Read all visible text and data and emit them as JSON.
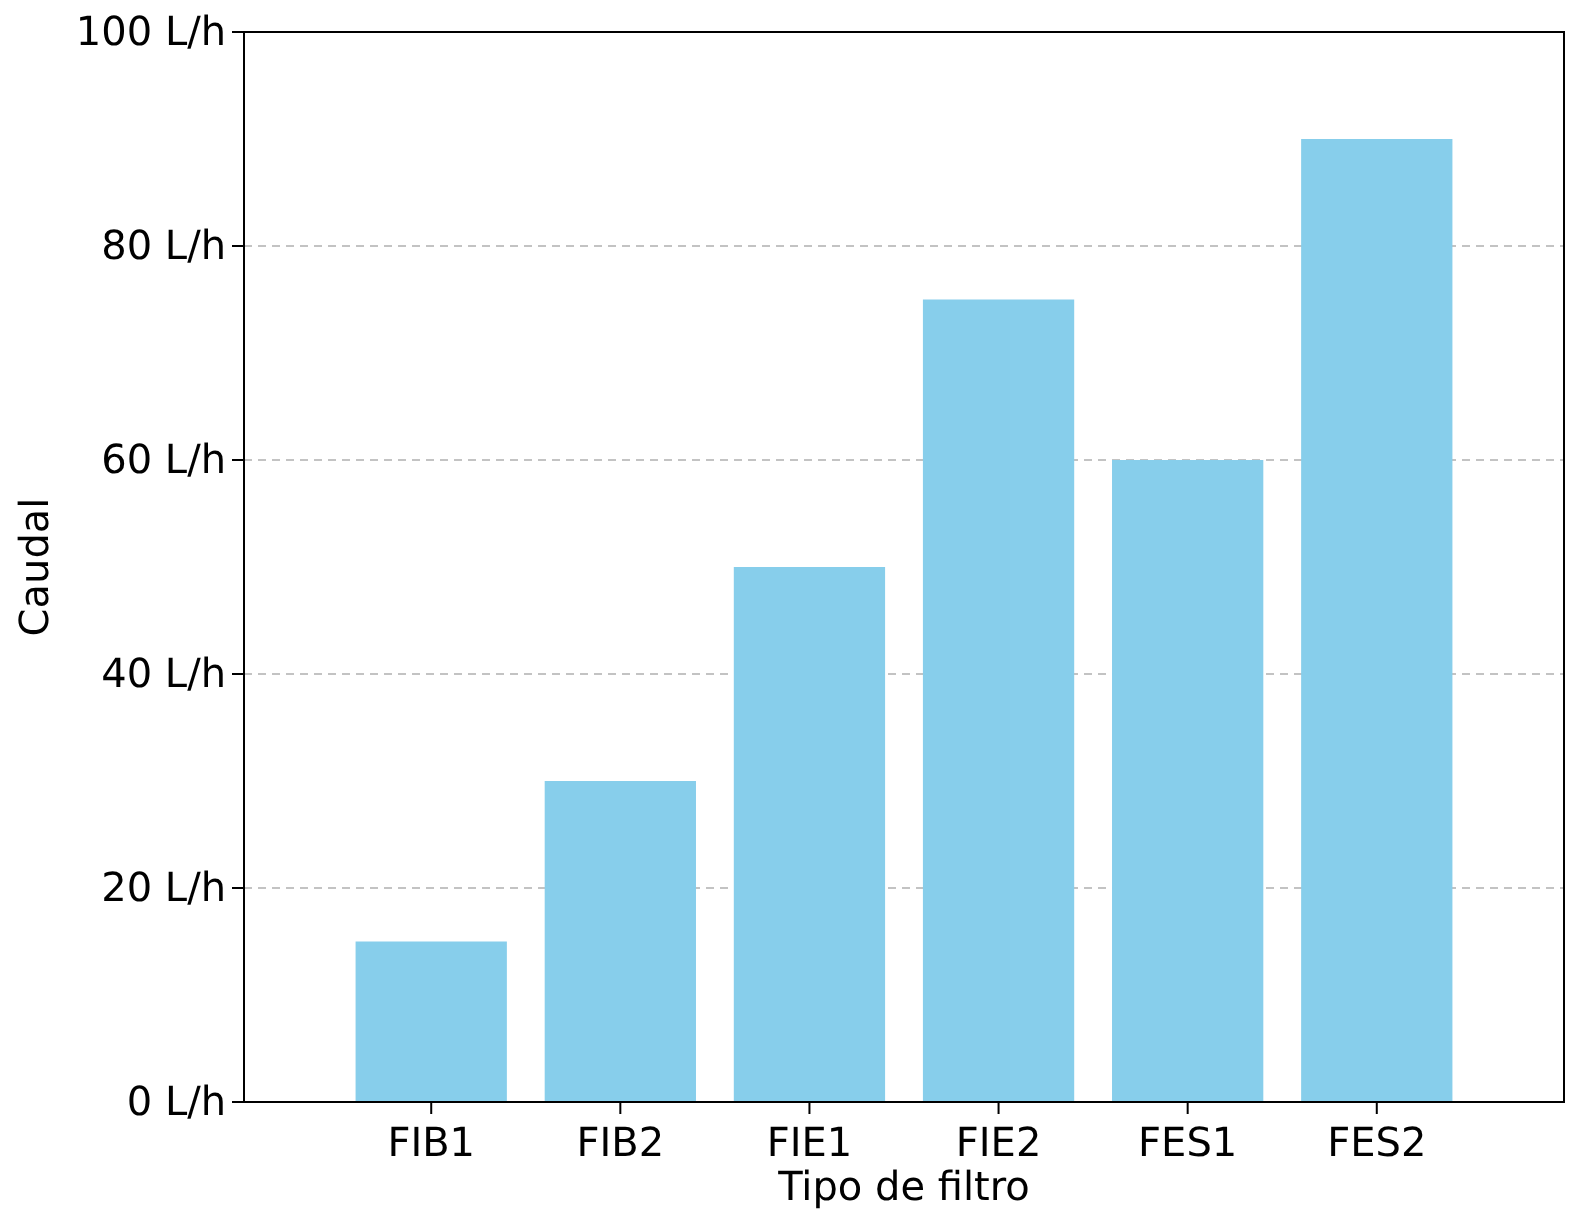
{
  "chart_data": {
    "type": "bar",
    "xlabel": "Tipo de filtro",
    "ylabel": "Caudal",
    "categories": [
      "FIB1",
      "FIB2",
      "FIE1",
      "FIE2",
      "FES1",
      "FES2"
    ],
    "values": [
      15,
      30,
      50,
      75,
      60,
      90
    ],
    "color": "#87ceeb",
    "ylim": [
      0,
      100
    ],
    "yticks": [
      {
        "value": 0,
        "label": "0 L/h"
      },
      {
        "value": 20,
        "label": "20 L/h"
      },
      {
        "value": 40,
        "label": "40 L/h"
      },
      {
        "value": 60,
        "label": "60 L/h"
      },
      {
        "value": 80,
        "label": "80 L/h"
      },
      {
        "value": 100,
        "label": "100 L/h"
      }
    ],
    "grid": "y"
  }
}
